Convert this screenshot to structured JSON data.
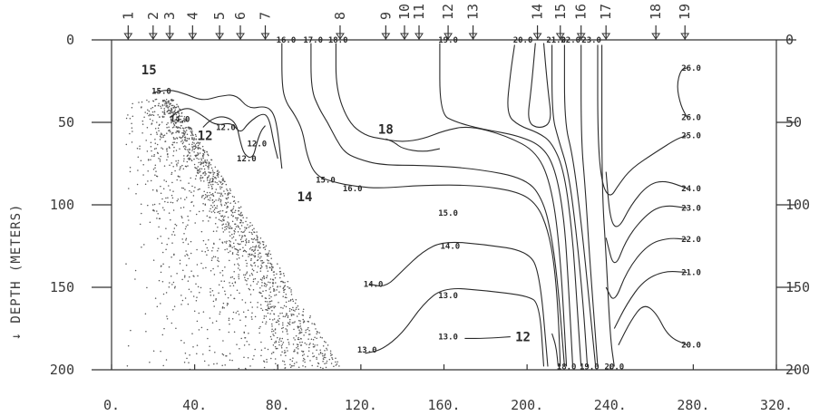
{
  "chart_data": {
    "type": "contour",
    "ylabel": "DEPTH (METERS)",
    "xlim": [
      0,
      320
    ],
    "ylim": [
      0,
      200
    ],
    "x_ticks": [
      "0.",
      "40.",
      "80.",
      "120.",
      "160.",
      "200.",
      "240.",
      "280.",
      "320."
    ],
    "y_ticks": [
      "0",
      "50",
      "100",
      "150",
      "200"
    ],
    "stations": [
      {
        "label": "1",
        "x": 8
      },
      {
        "label": "2",
        "x": 20
      },
      {
        "label": "3",
        "x": 28
      },
      {
        "label": "4",
        "x": 39
      },
      {
        "label": "5",
        "x": 52
      },
      {
        "label": "6",
        "x": 62
      },
      {
        "label": "7",
        "x": 74
      },
      {
        "label": "8",
        "x": 110
      },
      {
        "label": "9",
        "x": 132
      },
      {
        "label": "10",
        "x": 141
      },
      {
        "label": "11",
        "x": 148
      },
      {
        "label": "12",
        "x": 162
      },
      {
        "label": "13",
        "x": 174
      },
      {
        "label": "14",
        "x": 205
      },
      {
        "label": "15",
        "x": 216
      },
      {
        "label": "16",
        "x": 226
      },
      {
        "label": "17",
        "x": 238
      },
      {
        "label": "18",
        "x": 262
      },
      {
        "label": "19",
        "x": 276
      }
    ],
    "contour_labels": [
      {
        "text": "15.0",
        "x": 24,
        "y": 31
      },
      {
        "text": "14.0",
        "x": 33,
        "y": 48
      },
      {
        "text": "12.0",
        "x": 55,
        "y": 53
      },
      {
        "text": "12.0",
        "x": 70,
        "y": 63
      },
      {
        "text": "12.0",
        "x": 65,
        "y": 72
      },
      {
        "text": "16.0",
        "x": 84,
        "y": 0
      },
      {
        "text": "17.0",
        "x": 97,
        "y": 0
      },
      {
        "text": "18.0",
        "x": 109,
        "y": 0
      },
      {
        "text": "15.0",
        "x": 103,
        "y": 85
      },
      {
        "text": "16.0",
        "x": 116,
        "y": 90
      },
      {
        "text": "15.0",
        "x": 162,
        "y": 105
      },
      {
        "text": "14.0",
        "x": 163,
        "y": 125
      },
      {
        "text": "14.0",
        "x": 126,
        "y": 148
      },
      {
        "text": "13.0",
        "x": 162,
        "y": 155
      },
      {
        "text": "13.0",
        "x": 123,
        "y": 188
      },
      {
        "text": "13.0",
        "x": 162,
        "y": 180
      },
      {
        "text": "19.0",
        "x": 162,
        "y": 0
      },
      {
        "text": "20.0",
        "x": 198,
        "y": 0
      },
      {
        "text": "21.0",
        "x": 214,
        "y": 0
      },
      {
        "text": "22.0",
        "x": 221,
        "y": 0
      },
      {
        "text": "23.0",
        "x": 231,
        "y": 0
      },
      {
        "text": "26.0",
        "x": 279,
        "y": 17
      },
      {
        "text": "26.0",
        "x": 279,
        "y": 47
      },
      {
        "text": "25.0",
        "x": 279,
        "y": 58
      },
      {
        "text": "24.0",
        "x": 279,
        "y": 90
      },
      {
        "text": "23.0",
        "x": 279,
        "y": 102
      },
      {
        "text": "22.0",
        "x": 279,
        "y": 121
      },
      {
        "text": "21.0",
        "x": 279,
        "y": 141
      },
      {
        "text": "20.0",
        "x": 279,
        "y": 185
      },
      {
        "text": "18.0",
        "x": 219,
        "y": 198
      },
      {
        "text": "19.0",
        "x": 230,
        "y": 198
      },
      {
        "text": "20.0",
        "x": 242,
        "y": 198
      }
    ],
    "big_labels": [
      {
        "text": "15",
        "x": 18,
        "y": 18
      },
      {
        "text": "12",
        "x": 45,
        "y": 58
      },
      {
        "text": "14",
        "x": 93,
        "y": 95
      },
      {
        "text": "18",
        "x": 132,
        "y": 54
      },
      {
        "text": "12",
        "x": 198,
        "y": 180
      }
    ],
    "contours": [
      {
        "level": 15,
        "points": [
          [
            20,
            32
          ],
          [
            28,
            30
          ],
          [
            36,
            33
          ],
          [
            44,
            37
          ],
          [
            52,
            34
          ],
          [
            60,
            33
          ],
          [
            66,
            42
          ],
          [
            74,
            40
          ],
          [
            78,
            44
          ],
          [
            80,
            55
          ],
          [
            82,
            78
          ]
        ]
      },
      {
        "level": 14,
        "points": [
          [
            28,
            47
          ],
          [
            36,
            40
          ],
          [
            44,
            46
          ],
          [
            50,
            52
          ],
          [
            58,
            50
          ],
          [
            62,
            57
          ],
          [
            66,
            50
          ],
          [
            73,
            44
          ],
          [
            76,
            48
          ],
          [
            78,
            62
          ],
          [
            80,
            72
          ]
        ]
      },
      {
        "level": 12,
        "points": [
          [
            44,
            53
          ],
          [
            48,
            48
          ],
          [
            54,
            46
          ],
          [
            60,
            50
          ],
          [
            62,
            62
          ],
          [
            64,
            70
          ],
          [
            68,
            72
          ],
          [
            70,
            62
          ],
          [
            72,
            55
          ],
          [
            74,
            52
          ]
        ]
      },
      {
        "level": 16,
        "points": [
          [
            82,
            2
          ],
          [
            82,
            28
          ],
          [
            84,
            38
          ],
          [
            88,
            45
          ],
          [
            92,
            55
          ],
          [
            94,
            70
          ],
          [
            98,
            82
          ],
          [
            106,
            86
          ],
          [
            118,
            89
          ],
          [
            130,
            90
          ],
          [
            150,
            88
          ],
          [
            175,
            88
          ],
          [
            196,
            92
          ],
          [
            205,
            100
          ],
          [
            210,
            115
          ],
          [
            213,
            135
          ],
          [
            215,
            165
          ],
          [
            216,
            198
          ]
        ]
      },
      {
        "level": 17,
        "points": [
          [
            96,
            2
          ],
          [
            96,
            30
          ],
          [
            100,
            42
          ],
          [
            104,
            50
          ],
          [
            108,
            60
          ],
          [
            112,
            68
          ],
          [
            118,
            72
          ],
          [
            130,
            76
          ],
          [
            150,
            76
          ],
          [
            175,
            78
          ],
          [
            200,
            84
          ],
          [
            208,
            98
          ],
          [
            212,
            120
          ],
          [
            215,
            150
          ],
          [
            218,
            198
          ]
        ]
      },
      {
        "level": 18,
        "points": [
          [
            108,
            2
          ],
          [
            108,
            30
          ],
          [
            114,
            50
          ],
          [
            122,
            58
          ],
          [
            130,
            60
          ],
          [
            140,
            62
          ],
          [
            150,
            60
          ],
          [
            160,
            55
          ],
          [
            172,
            52
          ],
          [
            190,
            58
          ],
          [
            205,
            68
          ],
          [
            212,
            90
          ],
          [
            216,
            130
          ],
          [
            219,
            198
          ]
        ]
      },
      {
        "level": 19,
        "points": [
          [
            158,
            2
          ],
          [
            158,
            45
          ],
          [
            166,
            50
          ],
          [
            178,
            54
          ],
          [
            196,
            58
          ],
          [
            208,
            65
          ],
          [
            214,
            80
          ],
          [
            218,
            110
          ],
          [
            220,
            150
          ],
          [
            222,
            198
          ]
        ]
      },
      {
        "level": 20,
        "points": [
          [
            194,
            3
          ],
          [
            192,
            20
          ],
          [
            190,
            45
          ],
          [
            196,
            52
          ],
          [
            205,
            56
          ],
          [
            212,
            62
          ],
          [
            218,
            80
          ],
          [
            222,
            120
          ],
          [
            224,
            160
          ],
          [
            226,
            198
          ]
        ]
      },
      {
        "level": 21,
        "points": [
          [
            212,
            3
          ],
          [
            212,
            45
          ],
          [
            215,
            60
          ],
          [
            220,
            80
          ],
          [
            224,
            120
          ],
          [
            227,
            160
          ],
          [
            229,
            198
          ]
        ]
      },
      {
        "level": 22,
        "points": [
          [
            218,
            3
          ],
          [
            218,
            50
          ],
          [
            222,
            70
          ],
          [
            226,
            110
          ],
          [
            230,
            160
          ],
          [
            233,
            198
          ]
        ]
      },
      {
        "level": 23,
        "points": [
          [
            226,
            3
          ],
          [
            226,
            60
          ],
          [
            228,
            90
          ],
          [
            230,
            130
          ],
          [
            234,
            198
          ]
        ]
      },
      {
        "level": 24,
        "points": [
          [
            236,
            3
          ],
          [
            236,
            90
          ],
          [
            238,
            130
          ],
          [
            240,
            180
          ],
          [
            242,
            198
          ]
        ]
      },
      {
        "level": 25,
        "points": [
          [
            277,
            58
          ],
          [
            272,
            60
          ],
          [
            262,
            68
          ],
          [
            250,
            78
          ],
          [
            244,
            88
          ],
          [
            240,
            96
          ],
          [
            236,
            88
          ],
          [
            234,
            60
          ],
          [
            234,
            3
          ]
        ]
      },
      {
        "level": 24.5,
        "points": [
          [
            277,
            90
          ],
          [
            266,
            85
          ],
          [
            258,
            88
          ],
          [
            250,
            100
          ],
          [
            244,
            115
          ],
          [
            240,
            110
          ],
          [
            238,
            80
          ]
        ]
      },
      {
        "level": 23.5,
        "points": [
          [
            277,
            102
          ],
          [
            266,
            100
          ],
          [
            258,
            105
          ],
          [
            248,
            120
          ],
          [
            242,
            140
          ],
          [
            238,
            120
          ]
        ]
      },
      {
        "level": 22.5,
        "points": [
          [
            277,
            121
          ],
          [
            268,
            120
          ],
          [
            258,
            124
          ],
          [
            248,
            140
          ],
          [
            242,
            160
          ],
          [
            238,
            150
          ]
        ]
      },
      {
        "level": 21.5,
        "points": [
          [
            277,
            141
          ],
          [
            266,
            140
          ],
          [
            256,
            146
          ],
          [
            248,
            160
          ],
          [
            242,
            175
          ]
        ]
      },
      {
        "level": 20.5,
        "points": [
          [
            277,
            185
          ],
          [
            268,
            180
          ],
          [
            262,
            165
          ],
          [
            256,
            160
          ],
          [
            250,
            170
          ],
          [
            244,
            185
          ]
        ]
      },
      {
        "level": 26,
        "points": [
          [
            277,
            17
          ],
          [
            274,
            18
          ],
          [
            272,
            28
          ],
          [
            274,
            40
          ],
          [
            277,
            47
          ]
        ]
      },
      {
        "level": 20.2,
        "points": [
          [
            208,
            2
          ],
          [
            210,
            30
          ],
          [
            212,
            50
          ],
          [
            206,
            54
          ],
          [
            200,
            50
          ],
          [
            202,
            30
          ],
          [
            204,
            2
          ]
        ]
      },
      {
        "level": 15.5,
        "points": [
          [
            132,
            60
          ],
          [
            136,
            62
          ],
          [
            140,
            66
          ],
          [
            150,
            68
          ],
          [
            158,
            66
          ]
        ]
      },
      {
        "level": 13,
        "points": [
          [
            122,
            190
          ],
          [
            130,
            188
          ],
          [
            140,
            178
          ],
          [
            150,
            160
          ],
          [
            160,
            150
          ],
          [
            180,
            152
          ],
          [
            200,
            155
          ],
          [
            206,
            160
          ],
          [
            208,
            198
          ]
        ]
      },
      {
        "level": 14.1,
        "points": [
          [
            124,
            148
          ],
          [
            132,
            150
          ],
          [
            140,
            140
          ],
          [
            150,
            128
          ],
          [
            160,
            122
          ],
          [
            180,
            124
          ],
          [
            200,
            128
          ],
          [
            206,
            140
          ],
          [
            210,
            198
          ]
        ]
      },
      {
        "level": 12.1,
        "points": [
          [
            170,
            181
          ],
          [
            180,
            181
          ],
          [
            192,
            180
          ]
        ]
      },
      {
        "level": 12.2,
        "points": [
          [
            212,
            178
          ],
          [
            214,
            186
          ],
          [
            215,
            198
          ]
        ]
      }
    ]
  }
}
